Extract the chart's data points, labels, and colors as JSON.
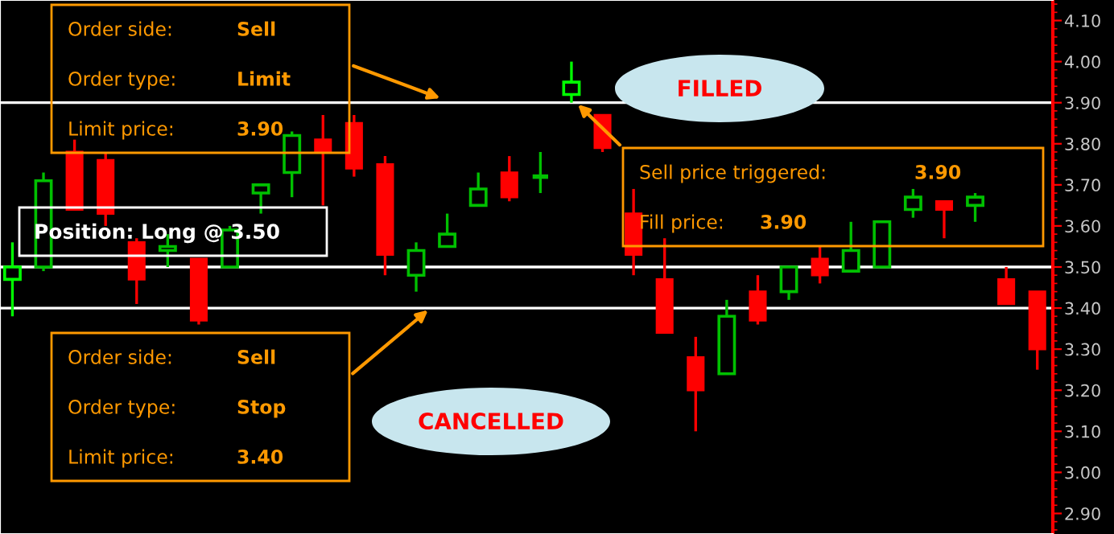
{
  "chart_data": {
    "type": "candlestick",
    "categories": [
      null,
      null,
      null,
      null,
      null,
      null,
      null,
      null,
      null,
      null,
      null,
      null,
      null,
      null,
      null,
      null,
      null,
      null,
      null,
      null,
      null,
      null,
      null,
      null,
      null,
      null,
      null,
      null,
      null,
      null,
      null,
      null,
      null,
      null
    ],
    "ohlc": [
      [
        3.47,
        3.56,
        3.38,
        3.5
      ],
      [
        3.5,
        3.73,
        3.49,
        3.71
      ],
      [
        3.78,
        3.81,
        3.64,
        3.64
      ],
      [
        3.76,
        3.78,
        3.6,
        3.63
      ],
      [
        3.56,
        3.57,
        3.41,
        3.47
      ],
      [
        3.54,
        3.58,
        3.5,
        3.55
      ],
      [
        3.52,
        3.52,
        3.36,
        3.37
      ],
      [
        3.5,
        3.6,
        3.5,
        3.59
      ],
      [
        3.68,
        3.7,
        3.63,
        3.7
      ],
      [
        3.73,
        3.83,
        3.67,
        3.82
      ],
      [
        3.81,
        3.87,
        3.65,
        3.78
      ],
      [
        3.85,
        3.87,
        3.72,
        3.74
      ],
      [
        3.75,
        3.77,
        3.48,
        3.53
      ],
      [
        3.48,
        3.56,
        3.44,
        3.54
      ],
      [
        3.55,
        3.63,
        3.55,
        3.58
      ],
      [
        3.65,
        3.73,
        3.65,
        3.69
      ],
      [
        3.73,
        3.77,
        3.66,
        3.67
      ],
      [
        3.72,
        3.78,
        3.68,
        3.72
      ],
      [
        3.92,
        4.0,
        3.9,
        3.95
      ],
      [
        3.87,
        3.87,
        3.78,
        3.79
      ],
      [
        3.63,
        3.69,
        3.48,
        3.53
      ],
      [
        3.47,
        3.57,
        3.34,
        3.34
      ],
      [
        3.28,
        3.33,
        3.1,
        3.2
      ],
      [
        3.24,
        3.42,
        3.24,
        3.38
      ],
      [
        3.44,
        3.48,
        3.36,
        3.37
      ],
      [
        3.44,
        3.5,
        3.42,
        3.5
      ],
      [
        3.52,
        3.55,
        3.46,
        3.48
      ],
      [
        3.49,
        3.61,
        3.49,
        3.54
      ],
      [
        3.5,
        3.61,
        3.5,
        3.61
      ],
      [
        3.64,
        3.69,
        3.62,
        3.67
      ],
      [
        3.66,
        3.66,
        3.57,
        3.64
      ],
      [
        3.65,
        3.68,
        3.61,
        3.67
      ],
      [
        3.47,
        3.5,
        3.41,
        3.41
      ],
      [
        3.44,
        3.44,
        3.25,
        3.3
      ]
    ],
    "colors": [
      "#00ff00",
      "#00c000",
      "#ff0000",
      "#ff0000",
      "#ff0000",
      "#00c000",
      "#ff0000",
      "#00c000",
      "#00c000",
      "#00c000",
      "#ff0000",
      "#ff0000",
      "#ff0000",
      "#00c000",
      "#00c000",
      "#00c000",
      "#ff0000",
      "#00c000",
      "#00ff00",
      "#ff0000",
      "#ff0000",
      "#ff0000",
      "#ff0000",
      "#00c000",
      "#ff0000",
      "#00c000",
      "#ff0000",
      "#00c000",
      "#00c000",
      "#00c000",
      "#ff0000",
      "#00c000",
      "#ff0000",
      "#ff0000"
    ],
    "ylim": [
      2.85,
      4.15
    ],
    "yticks": [
      {
        "value": 2.9,
        "label": "2.90"
      },
      {
        "value": 3.0,
        "label": "3.00"
      },
      {
        "value": 3.1,
        "label": "3.10"
      },
      {
        "value": 3.2,
        "label": "3.20"
      },
      {
        "value": 3.3,
        "label": "3.30"
      },
      {
        "value": 3.4,
        "label": "3.40"
      },
      {
        "value": 3.5,
        "label": "3.50"
      },
      {
        "value": 3.6,
        "label": "3.60"
      },
      {
        "value": 3.7,
        "label": "3.70"
      },
      {
        "value": 3.8,
        "label": "3.80"
      },
      {
        "value": 3.9,
        "label": "3.90"
      },
      {
        "value": 4.0,
        "label": "4.00"
      },
      {
        "value": 4.1,
        "label": "4.10"
      }
    ],
    "tick_labels": "y",
    "ref_lines": [
      {
        "axis": "y",
        "value": 3.9,
        "color": "#ffffff"
      },
      {
        "axis": "y",
        "value": 3.5,
        "color": "#ffffff"
      },
      {
        "axis": "y",
        "value": 3.4,
        "color": "#ffffff"
      }
    ],
    "annotations": [
      "Order side:",
      "Sell",
      "Order type:",
      "Limit",
      "Limit price:",
      "3.90",
      "Order side:",
      "Sell",
      "Order type:",
      "Stop",
      "Limit price:",
      "3.40",
      "Position: Long @ 3.50",
      "FILLED",
      "CANCELLED",
      "Sell price triggered:",
      "3.90",
      "Fill price:",
      "3.90"
    ]
  }
}
